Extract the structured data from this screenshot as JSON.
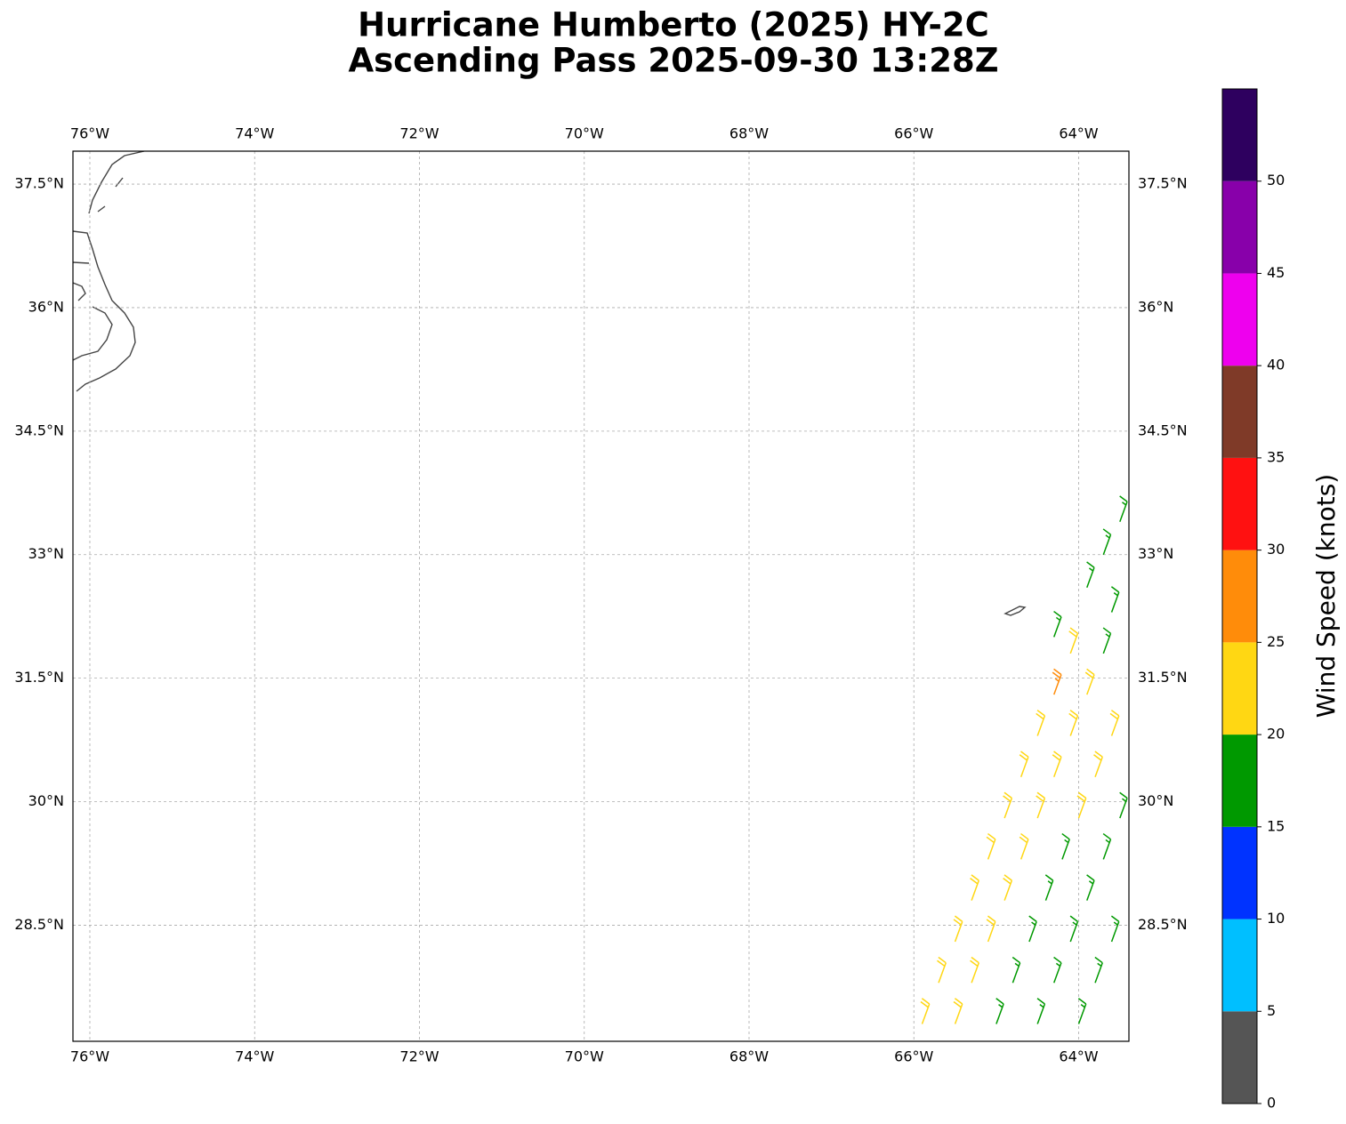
{
  "chart_data": {
    "type": "barbs",
    "title": "Hurricane Humberto (2025) HY-2C",
    "subtitle": "Ascending Pass 2025-09-30 13:28Z",
    "xlim": [
      -76.205,
      -63.39
    ],
    "ylim": [
      27.09,
      37.9
    ],
    "xticks": [
      {
        "value": -76,
        "label": "76°W"
      },
      {
        "value": -74,
        "label": "74°W"
      },
      {
        "value": -72,
        "label": "72°W"
      },
      {
        "value": -70,
        "label": "70°W"
      },
      {
        "value": -68,
        "label": "68°W"
      },
      {
        "value": -66,
        "label": "66°W"
      },
      {
        "value": -64,
        "label": "64°W"
      }
    ],
    "yticks": [
      {
        "value": 28.5,
        "label": "28.5°N"
      },
      {
        "value": 30,
        "label": "30°N"
      },
      {
        "value": 31.5,
        "label": "31.5°N"
      },
      {
        "value": 33,
        "label": "33°N"
      },
      {
        "value": 34.5,
        "label": "34.5°N"
      },
      {
        "value": 36,
        "label": "36°N"
      },
      {
        "value": 37.5,
        "label": "37.5°N"
      }
    ],
    "grid": true,
    "barbs": {
      "lon": [
        -65.9,
        -65.7,
        -65.5,
        -65.3,
        -65.1,
        -64.9,
        -64.7,
        -64.5,
        -64.3,
        -64.1,
        -65.5,
        -65.3,
        -65.1,
        -64.9,
        -64.7,
        -64.5,
        -64.3,
        -64.1,
        -63.9,
        -63.7,
        -63.6,
        -65.0,
        -64.8,
        -64.6,
        -64.4,
        -64.2,
        -64.0,
        -63.8,
        -63.6,
        -64.5,
        -64.3,
        -64.1,
        -63.9,
        -63.7,
        -63.5,
        -64.0,
        -63.8,
        -63.6,
        -64.3,
        -63.9,
        -63.7,
        -63.5
      ],
      "lat": [
        27.3,
        27.8,
        28.3,
        28.8,
        29.3,
        29.8,
        30.3,
        30.8,
        31.3,
        31.8,
        27.3,
        27.8,
        28.3,
        28.8,
        29.3,
        29.8,
        30.3,
        30.8,
        31.3,
        31.8,
        32.3,
        27.3,
        27.8,
        28.3,
        28.8,
        29.3,
        29.8,
        30.3,
        30.8,
        27.3,
        27.8,
        28.3,
        28.8,
        29.3,
        29.8,
        27.3,
        27.8,
        28.3,
        32.0,
        32.6,
        33.0,
        33.4
      ],
      "speed": [
        22,
        22,
        22,
        22,
        22,
        22,
        22,
        22,
        27,
        22,
        22,
        22,
        22,
        22,
        22,
        22,
        22,
        22,
        22,
        17,
        17,
        17,
        17,
        17,
        17,
        17,
        22,
        22,
        22,
        17,
        17,
        17,
        17,
        17,
        17,
        17,
        17,
        17,
        17,
        17,
        17,
        17
      ],
      "direction": 20
    },
    "colorbar": {
      "label": "Wind Speed (knots)",
      "lim": [
        0,
        55
      ],
      "levels": [
        0,
        5,
        10,
        15,
        20,
        25,
        30,
        35,
        40,
        45,
        50,
        55
      ],
      "colors": [
        "#555555",
        "#00bfff",
        "#0033ff",
        "#009900",
        "#ffd713",
        "#ff8c0a",
        "#ff1111",
        "#7f3a28",
        "#ee00ee",
        "#8800aa",
        "#2e005f"
      ],
      "ticks": [
        0,
        5,
        10,
        15,
        20,
        25,
        30,
        35,
        40,
        45,
        50
      ]
    }
  }
}
